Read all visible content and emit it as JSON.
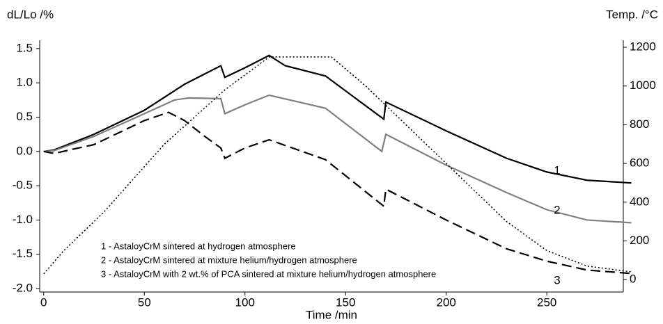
{
  "chart_data": {
    "type": "line",
    "y_label": "dL/Lo /%",
    "y2_label": "Temp. /°C",
    "x_label": "Time /min",
    "xlim": [
      -2,
      288
    ],
    "xticks": [
      0,
      50,
      100,
      150,
      200,
      250
    ],
    "ylim": [
      -2.05,
      1.62
    ],
    "yticks": [
      1.5,
      {
        "value": 1.0,
        "label": "1.0"
      },
      0.5,
      {
        "value": 0.0,
        "label": "0.0"
      },
      -0.5,
      {
        "value": -1.0,
        "label": "-1.0"
      },
      -1.5,
      {
        "value": -2.0,
        "label": "-2.0"
      }
    ],
    "y2lim": [
      -64,
      1236
    ],
    "y2ticks": [
      0,
      200,
      400,
      600,
      800,
      1000,
      1200
    ],
    "series": [
      {
        "name": "1 - AstaloyCrM sintered at hydrogen atmosphere",
        "color": "#000000",
        "style": "solid",
        "x": [
          0,
          5,
          25,
          50,
          70,
          88,
          90,
          100,
          112,
          120,
          140,
          169,
          170,
          200,
          230,
          250,
          270,
          292
        ],
        "values": [
          0,
          0.02,
          0.25,
          0.6,
          0.98,
          1.25,
          1.08,
          1.22,
          1.4,
          1.25,
          1.1,
          0.47,
          0.72,
          0.3,
          -0.1,
          -0.3,
          -0.42,
          -0.46
        ]
      },
      {
        "name": "2 - AstaloyCrM sintered at mixture helium/hydrogen atmosphere",
        "color": "#808080",
        "style": "solid",
        "x": [
          0,
          5,
          25,
          50,
          65,
          72,
          88,
          90,
          100,
          112,
          140,
          168,
          170,
          200,
          230,
          250,
          270,
          292
        ],
        "values": [
          0,
          0.01,
          0.22,
          0.55,
          0.75,
          0.78,
          0.77,
          0.55,
          0.68,
          0.82,
          0.63,
          0.0,
          0.25,
          -0.2,
          -0.6,
          -0.85,
          -1.0,
          -1.04
        ]
      },
      {
        "name": "3 - AstaloyCrM with 2 wt.% of PCA sintered at mixture helium/hydrogen atmosphere",
        "color": "#000000",
        "style": "dashed",
        "x": [
          0,
          5,
          25,
          50,
          62,
          70,
          80,
          88,
          90,
          100,
          112,
          140,
          169,
          170,
          200,
          230,
          250,
          270,
          292
        ],
        "values": [
          0,
          -0.03,
          0.1,
          0.45,
          0.57,
          0.45,
          0.22,
          0.05,
          -0.1,
          0.05,
          0.17,
          -0.12,
          -0.8,
          -0.55,
          -1.0,
          -1.42,
          -1.6,
          -1.73,
          -1.78
        ]
      },
      {
        "color": "#000000",
        "style": "dotted",
        "axis": "y2",
        "x": [
          0,
          10,
          30,
          60,
          90,
          112,
          143,
          160,
          200,
          230,
          250,
          270,
          292
        ],
        "values": [
          30,
          150,
          350,
          700,
          980,
          1150,
          1150,
          1000,
          600,
          300,
          150,
          70,
          40
        ]
      }
    ],
    "annotations": [
      "1",
      "2",
      "3"
    ]
  }
}
